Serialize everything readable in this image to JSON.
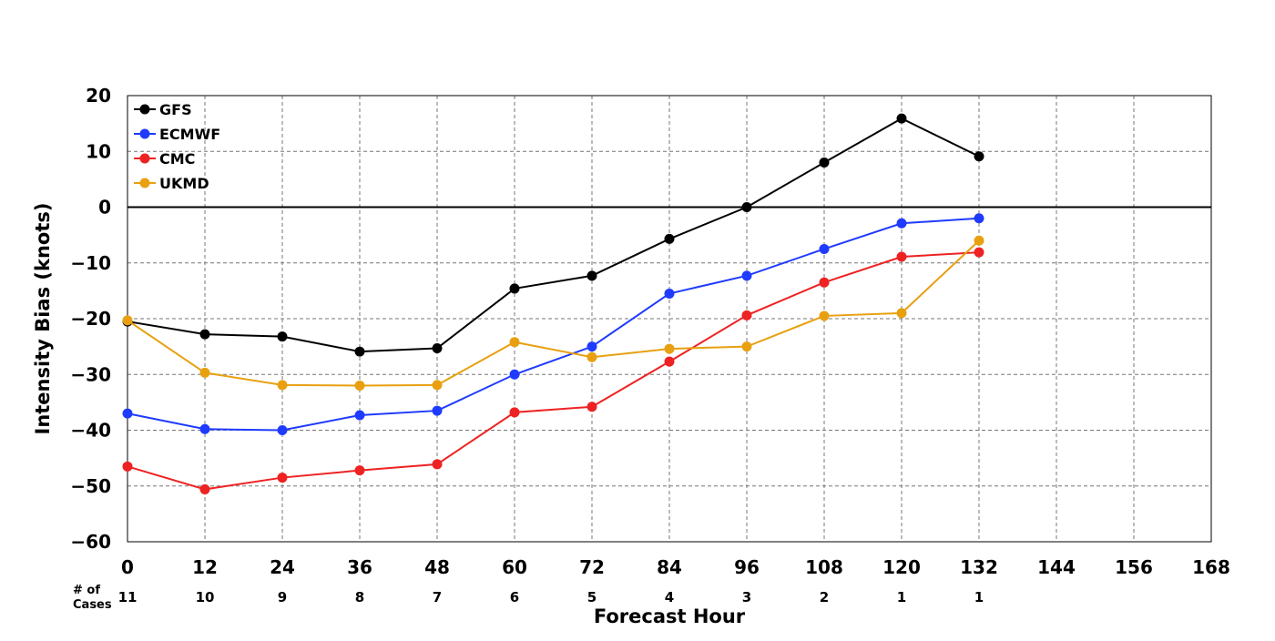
{
  "chart_data": {
    "type": "line",
    "xlabel": "Forecast Hour",
    "ylabel": "Intensity Bias (knots)",
    "xlim": [
      0,
      168
    ],
    "ylim": [
      -60,
      20
    ],
    "x_ticks": [
      0,
      12,
      24,
      36,
      48,
      60,
      72,
      84,
      96,
      108,
      120,
      132,
      144,
      156,
      168
    ],
    "y_ticks": [
      20,
      10,
      0,
      -10,
      -20,
      -30,
      -40,
      -50,
      -60
    ],
    "y_tick_labels": [
      "20",
      "10",
      "0",
      "−10",
      "−20",
      "−30",
      "−40",
      "−50",
      "−60"
    ],
    "grid": true,
    "zero_line": true,
    "legend_position": "top-left",
    "x": [
      0,
      12,
      24,
      36,
      48,
      60,
      72,
      84,
      96,
      108,
      120,
      132
    ],
    "series": [
      {
        "name": "GFS",
        "color": "#000000",
        "values": [
          -20.5,
          -22.8,
          -23.2,
          -25.9,
          -25.3,
          -14.6,
          -12.3,
          -5.7,
          0.0,
          8.0,
          15.9,
          9.1
        ]
      },
      {
        "name": "ECMWF",
        "color": "#1f3bff",
        "values": [
          -37.0,
          -39.8,
          -40.0,
          -37.3,
          -36.5,
          -30.0,
          -25.0,
          -15.5,
          -12.3,
          -7.5,
          -2.9,
          -2.0
        ]
      },
      {
        "name": "CMC",
        "color": "#ee2222",
        "values": [
          -46.5,
          -50.6,
          -48.5,
          -47.2,
          -46.1,
          -36.8,
          -35.8,
          -27.7,
          -19.4,
          -13.5,
          -8.9,
          -8.1
        ]
      },
      {
        "name": "UKMD",
        "color": "#e8a010",
        "values": [
          -20.3,
          -29.7,
          -31.9,
          -32.0,
          -31.9,
          -24.2,
          -26.9,
          -25.4,
          -25.0,
          -19.5,
          -19.0,
          -6.0
        ]
      }
    ],
    "cases_label": [
      "# of",
      "Cases"
    ],
    "cases": [
      "11",
      "10",
      "9",
      "8",
      "7",
      "6",
      "5",
      "4",
      "3",
      "2",
      "1",
      "1"
    ]
  }
}
